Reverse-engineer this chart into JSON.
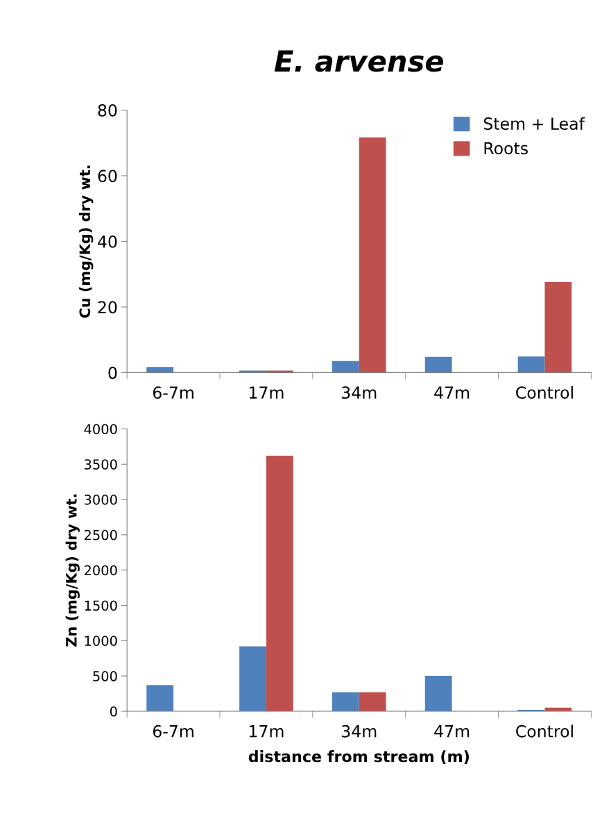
{
  "chart_data": [
    {
      "type": "bar",
      "title": "E. arvense",
      "ylabel": "Cu (mg/Kg) dry wt.",
      "categories": [
        "6-7m",
        "17m",
        "34m",
        "47m",
        "Control"
      ],
      "series": [
        {
          "name": "Stem + Leaf",
          "color": "#4f81bd",
          "values": [
            1.7,
            0.6,
            3.5,
            4.8,
            4.9
          ]
        },
        {
          "name": "Roots",
          "color": "#c0504d",
          "values": [
            0,
            0.6,
            71.7,
            0,
            27.6
          ]
        }
      ],
      "ylim": [
        0,
        80
      ],
      "yticks": [
        0,
        20,
        40,
        60,
        80
      ],
      "grid": false,
      "legend": "top right"
    },
    {
      "type": "bar",
      "xlabel": "distance from stream (m)",
      "ylabel": "Zn (mg/Kg) dry wt.",
      "categories": [
        "6-7m",
        "17m",
        "34m",
        "47m",
        "Control"
      ],
      "series": [
        {
          "color": "#4f81bd",
          "values": [
            370,
            920,
            270,
            500,
            20
          ]
        },
        {
          "color": "#c0504d",
          "values": [
            0,
            3620,
            270,
            0,
            50
          ]
        }
      ],
      "ylim": [
        0,
        4000
      ],
      "yticks": [
        0,
        500,
        1000,
        1500,
        2000,
        2500,
        3000,
        3500,
        4000
      ],
      "grid": false
    }
  ]
}
